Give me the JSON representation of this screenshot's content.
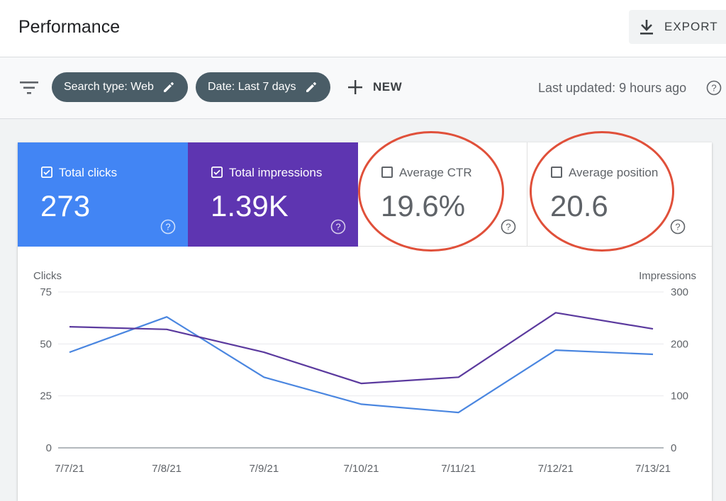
{
  "header": {
    "title": "Performance",
    "export_label": "EXPORT"
  },
  "filters": {
    "chips": [
      {
        "label": "Search type: Web"
      },
      {
        "label": "Date: Last 7 days"
      }
    ],
    "new_label": "NEW",
    "last_updated": "Last updated: 9 hours ago"
  },
  "metrics": [
    {
      "label": "Total clicks",
      "value": "273",
      "checked": true,
      "color": "#4285f4"
    },
    {
      "label": "Total impressions",
      "value": "1.39K",
      "checked": true,
      "color": "#5e35b1"
    },
    {
      "label": "Average CTR",
      "value": "19.6%",
      "checked": false,
      "color": "#ffffff"
    },
    {
      "label": "Average position",
      "value": "20.6",
      "checked": false,
      "color": "#ffffff"
    }
  ],
  "chart_data": {
    "type": "line",
    "x": [
      "7/7/21",
      "7/8/21",
      "7/9/21",
      "7/10/21",
      "7/11/21",
      "7/12/21",
      "7/13/21"
    ],
    "ylabel_left": "Clicks",
    "ylabel_right": "Impressions",
    "y_left_ticks": [
      "75",
      "50",
      "25",
      "0"
    ],
    "y_right_ticks": [
      "300",
      "200",
      "100",
      "0"
    ],
    "ylim_left": [
      0,
      75
    ],
    "ylim_right": [
      0,
      300
    ],
    "grid": true,
    "series": [
      {
        "name": "Clicks",
        "axis": "left",
        "color": "#4a86e0",
        "values": [
          46,
          63,
          34,
          21,
          17,
          47,
          45
        ]
      },
      {
        "name": "Impressions",
        "axis": "right",
        "color": "#5b3a9e",
        "values": [
          233,
          228,
          184,
          124,
          136,
          260,
          229
        ]
      }
    ]
  },
  "annotation_color": "#e0503a"
}
